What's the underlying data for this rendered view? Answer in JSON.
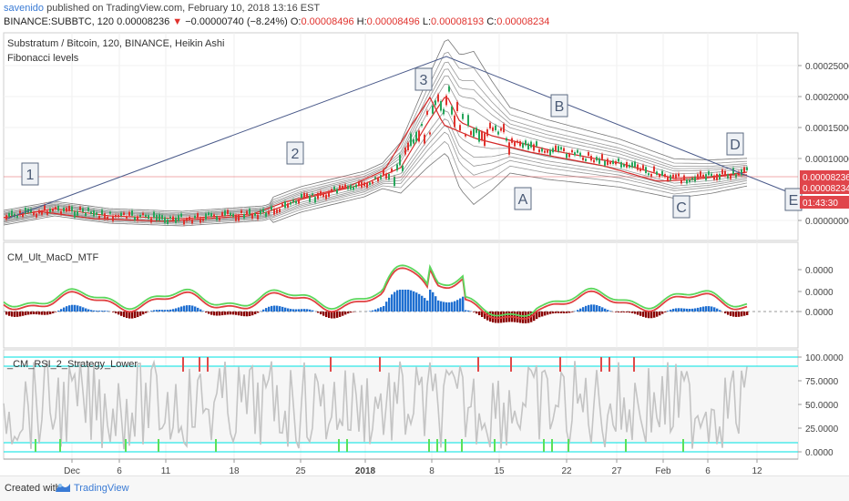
{
  "header": {
    "author": "savenido",
    "published_text": " published on TradingView.com, February 10, 2018 13:16 EST",
    "symbol_line": "BINANCE:SUBBTC, 120",
    "last_price": "0.00008236",
    "change": "−0.00000740 (−8.24%)",
    "o_label": "O:",
    "o_value": "0.00008496",
    "h_label": "H:",
    "h_value": "0.00008496",
    "l_label": "L:",
    "l_value": "0.00008193",
    "c_label": "C:",
    "c_value": "0.00008234"
  },
  "main_pane": {
    "title": "Substratum / Bitcoin, 120, BINANCE, Heikin Ashi",
    "subtitle": "Fibonacci levels",
    "y_ticks": [
      "0.00025000",
      "0.00020000",
      "0.00015000",
      "0.00010000",
      "0.00005000",
      "0.00000000"
    ],
    "price_tags": [
      {
        "text": "0.00008236",
        "color": "#e0454b"
      },
      {
        "text": "0.00008234",
        "color": "#e0454b"
      },
      {
        "text": "01:43:30",
        "color": "#e0454b"
      }
    ],
    "wave_labels": [
      "1",
      "2",
      "3",
      "A",
      "B",
      "C",
      "D",
      "E"
    ]
  },
  "macd_pane": {
    "title": "CM_Ult_MacD_MTF",
    "y_ticks": [
      "0.0000",
      "0.0000",
      "0.0000"
    ]
  },
  "rsi_pane": {
    "title": "_CM_RSI_2_Strategy_Lower",
    "y_ticks": [
      "100.0000",
      "75.0000",
      "50.0000",
      "25.0000",
      "0.0000"
    ]
  },
  "time_axis": {
    "ticks": [
      "Dec",
      "6",
      "11",
      "18",
      "25",
      "2018",
      "8",
      "15",
      "22",
      "27",
      "Feb",
      "6",
      "12"
    ]
  },
  "footer": {
    "created_with": "Created with",
    "brand": "TradingView"
  },
  "colors": {
    "accent": "#3a7bd5",
    "up": "#26a65b",
    "down": "#e0322d",
    "macd_green": "#5cd65c",
    "macd_red": "#e04040",
    "hist_blue": "#1f6fd1",
    "hist_darkred": "#8b0000",
    "cyan": "#2ee6e6",
    "rsi_gray": "#c4c4c4"
  }
}
